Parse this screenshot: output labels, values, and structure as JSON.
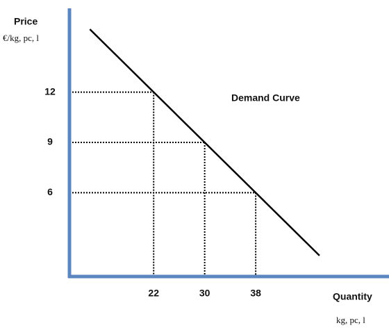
{
  "chart_data": {
    "type": "line",
    "y_label": "Price",
    "y_unit": "€/kg, pc, l",
    "x_label": "Quantity",
    "x_unit": "kg, pc, l",
    "x": [
      12,
      22,
      30,
      38,
      48
    ],
    "series": [
      {
        "name": "Demand Curve",
        "color": "#000000",
        "values": [
          15.75,
          12,
          9,
          6,
          2.25
        ]
      }
    ],
    "guides": [
      1,
      2,
      3
    ],
    "xlim": [
      8.8,
      58.9
    ],
    "ylim": [
      1,
      17
    ],
    "xticks": [
      22,
      30,
      38
    ],
    "yticks": [
      12,
      9,
      6
    ],
    "axis_color": "#5b86c0"
  }
}
